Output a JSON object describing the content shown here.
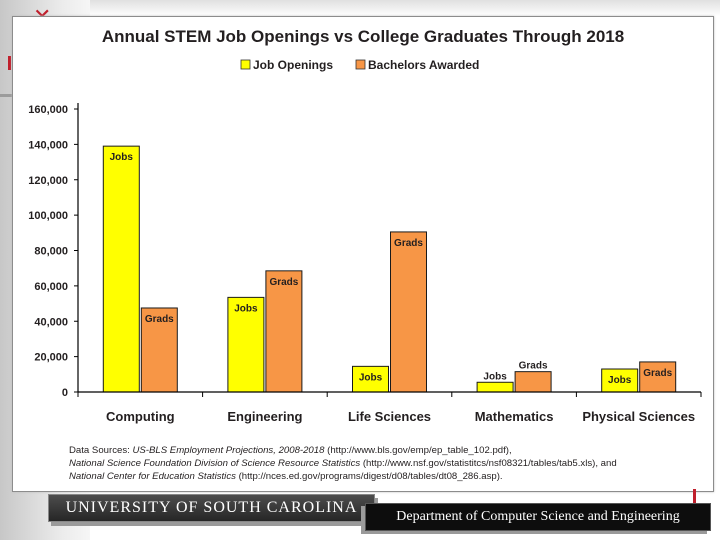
{
  "chart_data": {
    "type": "bar",
    "title": "Annual STEM Job Openings vs College Graduates Through 2018",
    "categories": [
      "Computing",
      "Engineering",
      "Life Sciences",
      "Mathematics",
      "Physical Sciences"
    ],
    "series": [
      {
        "name": "Job Openings",
        "color": "#ffff00",
        "values": [
          139000,
          53500,
          14500,
          5500,
          13000
        ],
        "bar_labels": [
          "Jobs",
          "Jobs",
          "Jobs",
          "Jobs",
          "Jobs"
        ]
      },
      {
        "name": "Bachelors Awarded",
        "color": "#f79646",
        "values": [
          47500,
          68500,
          90500,
          11500,
          17000
        ],
        "bar_labels": [
          "Grads",
          "Grads",
          "Grads",
          "Grads",
          "Grads"
        ]
      }
    ],
    "ylim": [
      0,
      160000
    ],
    "yticks": [
      0,
      20000,
      40000,
      60000,
      80000,
      100000,
      120000,
      140000,
      160000
    ],
    "ytick_labels": [
      "0",
      "20,000",
      "40,000",
      "60,000",
      "80,000",
      "100,000",
      "120,000",
      "140,000",
      "160,000"
    ],
    "xlabel": "",
    "ylabel": "",
    "legend_position": "top",
    "grid": false
  },
  "sources": {
    "prefix": "Data Sources: ",
    "line1_italic": "US-BLS Employment Projections, 2008-2018",
    "line1_rest": " (http://www.bls.gov/emp/ep_table_102.pdf),",
    "line2_italic": "National Science Foundation Division of Science Resource Statistics",
    "line2_rest": " (http://www.nsf.gov/statistitcs/nsf08321/tables/tab5.xls), and",
    "line3_italic": "National Center for Education Statistics",
    "line3_rest": " (http://nces.ed.gov/programs/digest/d08/tables/dt08_286.asp)."
  },
  "footer": {
    "university": "UNIVERSITY OF SOUTH CAROLINA",
    "department": "Department of Computer Science and Engineering"
  }
}
